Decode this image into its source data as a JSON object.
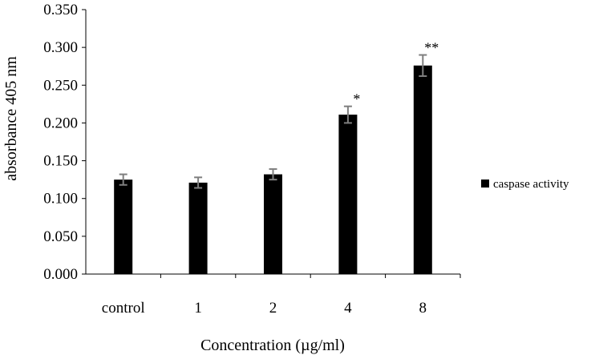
{
  "chart_data": {
    "type": "bar",
    "title": "",
    "xlabel": "Concentration (µg/ml)",
    "ylabel": "absorbance 405 nm",
    "ylim": [
      0,
      0.35
    ],
    "yticks": [
      "0.000",
      "0.050",
      "0.100",
      "0.150",
      "0.200",
      "0.250",
      "0.300",
      "0.350"
    ],
    "categories": [
      "control",
      "1",
      "2",
      "4",
      "8"
    ],
    "series": [
      {
        "name": "caspase activity",
        "color": "#000000",
        "values": [
          0.125,
          0.121,
          0.132,
          0.211,
          0.276
        ],
        "errors": [
          0.007,
          0.007,
          0.007,
          0.011,
          0.014
        ],
        "annotations": [
          "",
          "",
          "",
          "*",
          "**"
        ]
      }
    ],
    "grid": false,
    "legend_position": "right"
  }
}
